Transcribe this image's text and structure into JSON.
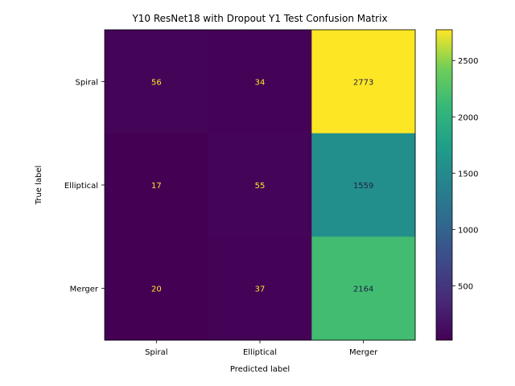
{
  "chart_data": {
    "type": "heatmap",
    "title": "Y10 ResNet18 with Dropout Y1 Test Confusion Matrix",
    "xlabel": "Predicted label",
    "ylabel": "True label",
    "x_categories": [
      "Spiral",
      "Elliptical",
      "Merger"
    ],
    "y_categories": [
      "Spiral",
      "Elliptical",
      "Merger"
    ],
    "values": [
      [
        56,
        34,
        2773
      ],
      [
        17,
        55,
        1559
      ],
      [
        20,
        37,
        2164
      ]
    ],
    "colormap": "viridis",
    "colorbar": {
      "ticks": [
        500,
        1000,
        1500,
        2000,
        2500
      ],
      "range": [
        17,
        2773
      ]
    }
  }
}
